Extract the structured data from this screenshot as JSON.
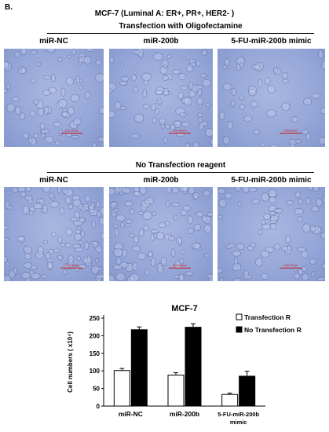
{
  "panel_label": "B.",
  "cell_line_title": "MCF-7 (Luminal A: ER+, PR+, HER2- )",
  "top_section": {
    "title": "Transfection with Oligofectamine",
    "headers": [
      "miR-NC",
      "miR-200b",
      "5-FU-miR-200b mimic"
    ],
    "scale_labels": [
      "100.00um",
      "100.00um",
      "100.00um"
    ]
  },
  "bottom_section": {
    "title": "No Transfection reagent",
    "headers": [
      "miR-NC",
      "miR-200b",
      "5-FU-miR-200b mimic"
    ],
    "scale_labels": [
      "100.00um",
      "100.00um",
      "100.00um"
    ]
  },
  "colors": {
    "micrograph_bg": "#95a6d8",
    "cell_outline": "#5a689c",
    "scale_bar": "#d01818",
    "bar_transfection": "#ffffff",
    "bar_no_transfection": "#000000"
  },
  "chart_data": {
    "type": "bar",
    "title": "MCF-7",
    "ylabel": "Cell numbers ( x10⁴)",
    "xlabel": "",
    "categories": [
      "miR-NC",
      "miR-200b",
      "5-FU-miR-200b mimic"
    ],
    "ylim": [
      0,
      250
    ],
    "yticks": [
      0,
      50,
      100,
      150,
      200,
      250
    ],
    "series": [
      {
        "name": "Transfection R",
        "values": [
          101,
          88,
          33
        ],
        "errors": [
          6,
          7,
          4
        ]
      },
      {
        "name": "No Transfection R",
        "values": [
          217,
          224,
          85
        ],
        "errors": [
          8,
          10,
          14
        ]
      }
    ],
    "legend_position": "top-right",
    "grid": false
  }
}
